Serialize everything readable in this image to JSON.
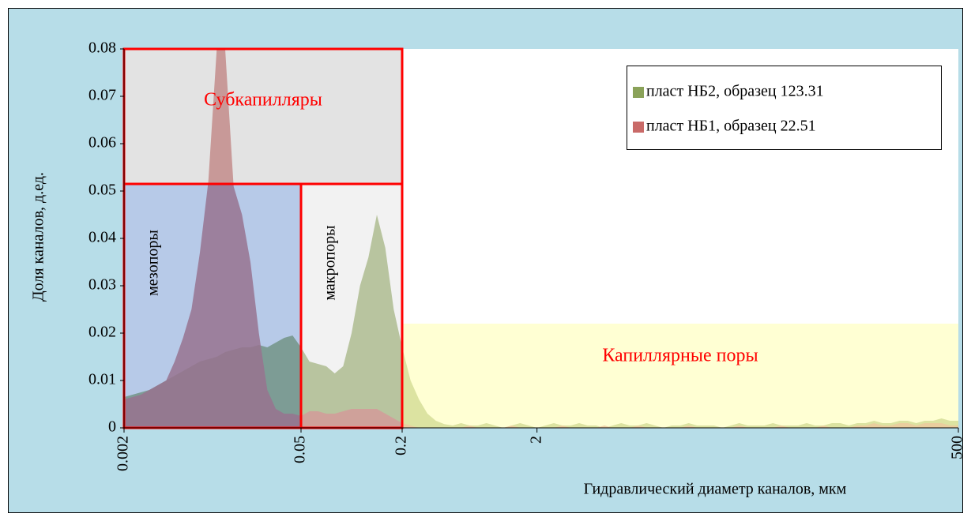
{
  "chart_data": {
    "type": "area",
    "x_label": "Гидравлический диаметр каналов, мкм",
    "y_label": "Доля каналов, д.ед.",
    "categories": [
      "0.002",
      null,
      null,
      null,
      null,
      null,
      null,
      null,
      null,
      null,
      null,
      null,
      null,
      null,
      null,
      null,
      null,
      null,
      null,
      null,
      null,
      "0.05",
      null,
      null,
      null,
      null,
      null,
      null,
      null,
      null,
      null,
      null,
      null,
      "0.2",
      null,
      null,
      null,
      null,
      null,
      null,
      null,
      null,
      null,
      null,
      null,
      null,
      null,
      null,
      null,
      "2",
      null,
      null,
      null,
      null,
      null,
      null,
      null,
      null,
      null,
      null,
      null,
      null,
      null,
      null,
      null,
      null,
      null,
      null,
      null,
      null,
      null,
      null,
      null,
      null,
      null,
      null,
      null,
      null,
      null,
      null,
      null,
      null,
      null,
      null,
      null,
      null,
      null,
      null,
      null,
      null,
      null,
      null,
      null,
      null,
      null,
      null,
      null,
      null,
      null,
      "500"
    ],
    "series": [
      {
        "name": "пласт НБ2, образец 123.31",
        "color": "#76923c",
        "values": [
          0.0065,
          0.007,
          0.0075,
          0.008,
          0.009,
          0.01,
          0.011,
          0.012,
          0.013,
          0.014,
          0.0145,
          0.015,
          0.016,
          0.0165,
          0.017,
          0.017,
          0.0175,
          0.017,
          0.018,
          0.019,
          0.0195,
          0.017,
          0.014,
          0.0135,
          0.013,
          0.0115,
          0.013,
          0.02,
          0.03,
          0.036,
          0.045,
          0.038,
          0.025,
          0.017,
          0.01,
          0.006,
          0.003,
          0.0015,
          0.0008,
          0.0005,
          0.001,
          0.0005,
          0.0005,
          0.001,
          0.0005,
          0,
          0.0005,
          0.001,
          0.0005,
          0,
          0.0005,
          0.001,
          0.0005,
          0.0005,
          0.001,
          0.0005,
          0.0005,
          0,
          0.0005,
          0.001,
          0.0005,
          0.0005,
          0.001,
          0.0005,
          0,
          0.0005,
          0.0005,
          0.001,
          0.0005,
          0.0005,
          0.0005,
          0,
          0.0005,
          0.001,
          0.0005,
          0.0005,
          0.0005,
          0.001,
          0.0005,
          0.0005,
          0.0005,
          0.001,
          0.0005,
          0.0005,
          0.001,
          0.001,
          0.0005,
          0.001,
          0.001,
          0.0015,
          0.001,
          0.001,
          0.0015,
          0.0015,
          0.001,
          0.0015,
          0.0015,
          0.002,
          0.0015,
          0.0015
        ]
      },
      {
        "name": "пласт НБ1, образец 22.51",
        "color": "#c0504d",
        "values": [
          0.006,
          0.0065,
          0.007,
          0.008,
          0.009,
          0.01,
          0.014,
          0.019,
          0.025,
          0.037,
          0.052,
          0.08,
          0.08,
          0.051,
          0.045,
          0.035,
          0.02,
          0.008,
          0.004,
          0.003,
          0.003,
          0.0025,
          0.0035,
          0.0035,
          0.003,
          0.003,
          0.0035,
          0.004,
          0.004,
          0.004,
          0.004,
          0.003,
          0.002,
          0.001,
          0.0005,
          0,
          0,
          0,
          0,
          0,
          0,
          0.0005,
          0,
          0,
          0,
          0,
          0.0005,
          0,
          0,
          0,
          0,
          0,
          0.0005,
          0,
          0,
          0,
          0,
          0.0005,
          0,
          0,
          0,
          0.0005,
          0,
          0,
          0,
          0,
          0,
          0.0005,
          0,
          0,
          0,
          0,
          0,
          0.0005,
          0,
          0,
          0,
          0,
          0.0005,
          0,
          0,
          0,
          0,
          0.0005,
          0,
          0,
          0,
          0.0005,
          0.0005,
          0.001,
          0.0005,
          0.0005,
          0.001,
          0.001,
          0.0005,
          0.001,
          0.001,
          0.001,
          0.0005,
          0.0005
        ]
      }
    ],
    "ylim": [
      0,
      0.08
    ],
    "yticks": [
      0,
      0.01,
      0.02,
      0.03,
      0.04,
      0.05,
      0.06,
      0.07,
      0.08
    ],
    "legend": "top-right",
    "regions": [
      {
        "label": "Капиллярные поры",
        "from": "0.2",
        "to": "500",
        "ylim": [
          0,
          0.022
        ],
        "fill": "#ffffc0",
        "label_color": "#ff0000",
        "label_orientation": "horizontal"
      },
      {
        "label": "Субкапилляры",
        "from": "0.002",
        "to": "0.2",
        "ylim": [
          0.0515,
          0.08
        ],
        "fill": "#c8c8c8",
        "label_color": "#ff0000",
        "label_orientation": "horizontal"
      },
      {
        "label": "мезопоры",
        "from": "0.002",
        "to": "0.05",
        "ylim": [
          0,
          0.0515
        ],
        "fill": "#6f96d2",
        "label_color": "#000000",
        "label_orientation": "vertical"
      },
      {
        "label": "макропоры",
        "from": "0.05",
        "to": "0.2",
        "ylim": [
          0,
          0.0515
        ],
        "fill": "#e6e6e6",
        "label_color": "#000000",
        "label_orientation": "vertical"
      }
    ]
  }
}
